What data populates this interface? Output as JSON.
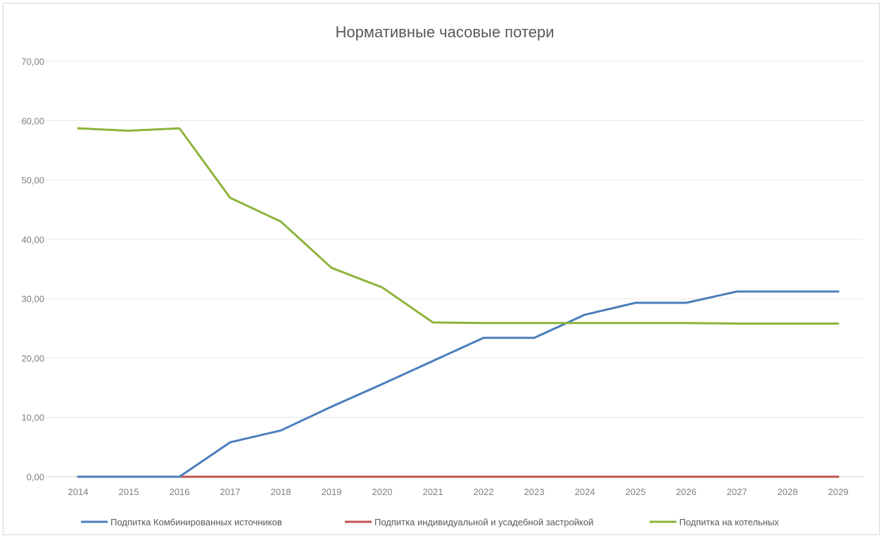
{
  "chart_data": {
    "type": "line",
    "title": "Нормативные часовые потери",
    "xlabel": "",
    "ylabel": "",
    "x": [
      "2014",
      "2015",
      "2016",
      "2017",
      "2018",
      "2019",
      "2020",
      "2021",
      "2022",
      "2023",
      "2024",
      "2025",
      "2026",
      "2027",
      "2028",
      "2029"
    ],
    "ylim": [
      0,
      70
    ],
    "yticks": [
      0,
      10,
      20,
      30,
      40,
      50,
      60,
      70
    ],
    "ytick_labels": [
      "0,00",
      "10,00",
      "20,00",
      "30,00",
      "40,00",
      "50,00",
      "60,00",
      "70,00"
    ],
    "grid": true,
    "legend_position": "bottom",
    "series": [
      {
        "name": "Подпитка Комбинированных источников",
        "color": "#4a7ebb",
        "values": [
          0,
          0,
          0,
          5.8,
          7.8,
          11.8,
          15.6,
          19.5,
          23.4,
          23.4,
          27.3,
          29.3,
          29.3,
          31.2,
          31.2,
          31.2
        ]
      },
      {
        "name": "Подпитка индивидуальной и усадебной застройкой",
        "color": "#c0504d",
        "values": [
          0,
          0,
          0,
          0,
          0,
          0,
          0,
          0,
          0,
          0,
          0,
          0,
          0,
          0,
          0,
          0
        ]
      },
      {
        "name": "Подпитка на котельных",
        "color": "#8db33b",
        "values": [
          58.7,
          58.3,
          58.7,
          47.0,
          43.0,
          35.2,
          31.9,
          26.0,
          25.9,
          25.9,
          25.9,
          25.9,
          25.9,
          25.8,
          25.8,
          25.8
        ]
      }
    ]
  }
}
